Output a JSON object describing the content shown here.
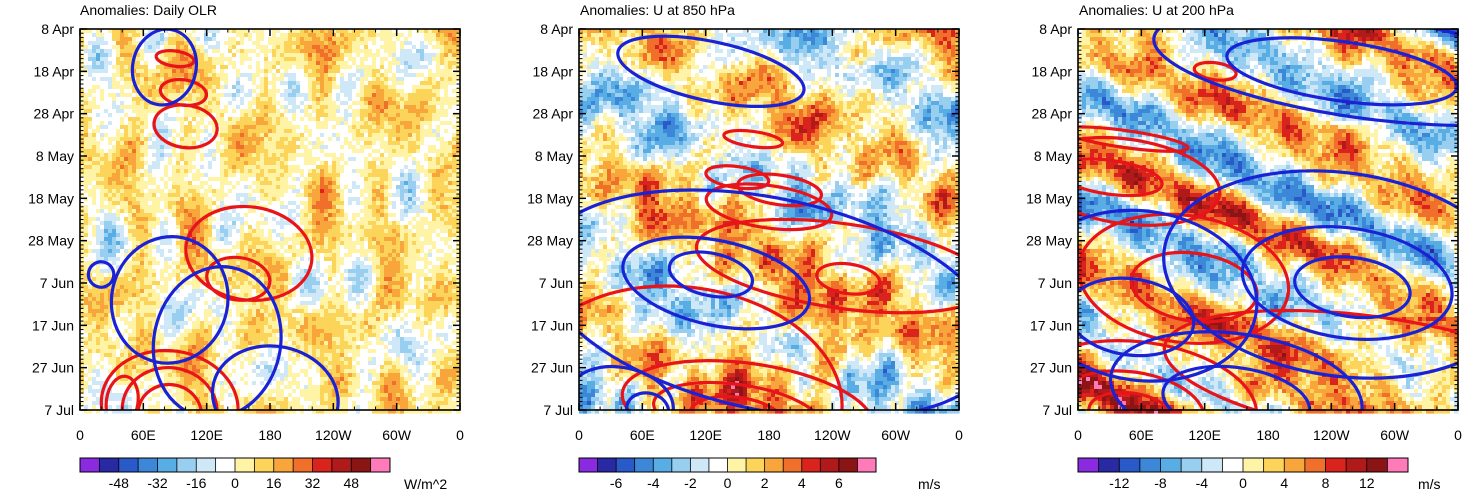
{
  "chart_data": [
    {
      "type": "heatmap",
      "title": "Anomalies: Daily OLR",
      "variable": "OLR anomaly",
      "x_tick_labels": [
        "0",
        "60E",
        "120E",
        "180",
        "120W",
        "60W",
        "0"
      ],
      "x_range_deg_east": [
        0,
        360
      ],
      "y_tick_labels": [
        "8 Apr",
        "18 Apr",
        "28 Apr",
        "8 May",
        "18 May",
        "28 May",
        "7 Jun",
        "17 Jun",
        "27 Jun",
        "7 Jul"
      ],
      "colorbar": {
        "labels": [
          "-48",
          "-32",
          "-16",
          "0",
          "16",
          "32",
          "48"
        ],
        "units": "W/m^2",
        "range": [
          -64,
          64
        ]
      },
      "contours": {
        "red": [
          {
            "lon": 90,
            "date_index": 0.7,
            "w": 18,
            "h": 0.18
          },
          {
            "lon": 98,
            "date_index": 1.5,
            "w": 22,
            "h": 0.3
          },
          {
            "lon": 100,
            "date_index": 2.3,
            "w": 30,
            "h": 0.5
          },
          {
            "lon": 160,
            "date_index": 5.3,
            "w": 60,
            "h": 1.1
          },
          {
            "lon": 150,
            "date_index": 5.9,
            "w": 30,
            "h": 0.5
          },
          {
            "lon": 40,
            "date_index": 8.8,
            "w": 15,
            "h": 0.6
          },
          {
            "lon": 85,
            "date_index": 8.9,
            "w": 65,
            "h": 1.3
          },
          {
            "lon": 85,
            "date_index": 9.0,
            "w": 45,
            "h": 1.0
          },
          {
            "lon": 85,
            "date_index": 9.1,
            "w": 30,
            "h": 0.7
          }
        ],
        "blue": [
          {
            "lon": 80,
            "date_index": 0.9,
            "w": 30,
            "h": 0.9
          },
          {
            "lon": 20,
            "date_index": 5.8,
            "w": 12,
            "h": 0.3
          },
          {
            "lon": 85,
            "date_index": 6.4,
            "w": 55,
            "h": 1.5
          },
          {
            "lon": 130,
            "date_index": 7.4,
            "w": 60,
            "h": 1.8
          },
          {
            "lon": 185,
            "date_index": 8.7,
            "w": 60,
            "h": 1.2
          }
        ]
      }
    },
    {
      "type": "heatmap",
      "title": "Anomalies: U at 850 hPa",
      "variable": "zonal wind anomaly at 850 hPa",
      "x_tick_labels": [
        "0",
        "60E",
        "120E",
        "180",
        "120W",
        "60W",
        "0"
      ],
      "x_range_deg_east": [
        0,
        360
      ],
      "y_tick_labels": [
        "8 Apr",
        "18 Apr",
        "28 Apr",
        "8 May",
        "18 May",
        "28 May",
        "7 Jun",
        "17 Jun",
        "27 Jun",
        "7 Jul"
      ],
      "colorbar": {
        "labels": [
          "-6",
          "-4",
          "-2",
          "0",
          "2",
          "4",
          "6"
        ],
        "units": "m/s",
        "range": [
          -8,
          8
        ]
      },
      "contours": {
        "red": [
          {
            "lon": 165,
            "date_index": 2.6,
            "w": 28,
            "h": 0.18
          },
          {
            "lon": 150,
            "date_index": 3.5,
            "w": 30,
            "h": 0.25
          },
          {
            "lon": 190,
            "date_index": 3.8,
            "w": 40,
            "h": 0.35
          },
          {
            "lon": 180,
            "date_index": 4.2,
            "w": 60,
            "h": 0.5
          },
          {
            "lon": 250,
            "date_index": 5.6,
            "w": 140,
            "h": 1.0
          },
          {
            "lon": 255,
            "date_index": 5.9,
            "w": 30,
            "h": 0.35
          },
          {
            "lon": 100,
            "date_index": 8.6,
            "w": 150,
            "h": 2.5
          },
          {
            "lon": 160,
            "date_index": 9.0,
            "w": 120,
            "h": 1.1
          },
          {
            "lon": 150,
            "date_index": 9.1,
            "w": 80,
            "h": 0.7
          },
          {
            "lon": 150,
            "date_index": 9.2,
            "w": 45,
            "h": 0.5
          }
        ],
        "blue": [
          {
            "lon": 125,
            "date_index": 1.0,
            "w": 90,
            "h": 0.7
          },
          {
            "lon": 180,
            "date_index": 6.5,
            "w": 220,
            "h": 2.5
          },
          {
            "lon": 130,
            "date_index": 6.0,
            "w": 90,
            "h": 1.0
          },
          {
            "lon": 125,
            "date_index": 5.8,
            "w": 40,
            "h": 0.5
          },
          {
            "lon": 40,
            "date_index": 8.8,
            "w": 50,
            "h": 0.8
          },
          {
            "lon": 65,
            "date_index": 9.0,
            "w": 20,
            "h": 0.4
          }
        ]
      }
    },
    {
      "type": "heatmap",
      "title": "Anomalies: U at 200 hPa",
      "variable": "zonal wind anomaly at 200 hPa",
      "x_tick_labels": [
        "0",
        "60E",
        "120E",
        "180",
        "120W",
        "60W",
        "0"
      ],
      "x_range_deg_east": [
        0,
        360
      ],
      "y_tick_labels": [
        "8 Apr",
        "18 Apr",
        "28 Apr",
        "8 May",
        "18 May",
        "28 May",
        "7 Jun",
        "17 Jun",
        "27 Jun",
        "7 Jul"
      ],
      "colorbar": {
        "labels": [
          "-12",
          "-8",
          "-4",
          "0",
          "4",
          "8",
          "12"
        ],
        "units": "m/s",
        "range": [
          -16,
          16
        ]
      },
      "contours": {
        "red": [
          {
            "lon": 45,
            "date_index": 2.6,
            "w": 60,
            "h": 0.2
          },
          {
            "lon": 130,
            "date_index": 1.0,
            "w": 20,
            "h": 0.2
          },
          {
            "lon": 45,
            "date_index": 3.6,
            "w": 90,
            "h": 1.0
          },
          {
            "lon": 30,
            "date_index": 3.5,
            "w": 50,
            "h": 0.4
          },
          {
            "lon": 100,
            "date_index": 5.9,
            "w": 100,
            "h": 1.5
          },
          {
            "lon": 110,
            "date_index": 6.1,
            "w": 60,
            "h": 0.8
          },
          {
            "lon": 280,
            "date_index": 8.2,
            "w": 200,
            "h": 1.4
          },
          {
            "lon": 60,
            "date_index": 8.8,
            "w": 110,
            "h": 1.4
          },
          {
            "lon": 50,
            "date_index": 9.0,
            "w": 70,
            "h": 0.9
          },
          {
            "lon": 50,
            "date_index": 9.1,
            "w": 40,
            "h": 0.5
          }
        ],
        "blue": [
          {
            "lon": 270,
            "date_index": 0.9,
            "w": 200,
            "h": 1.2
          },
          {
            "lon": 250,
            "date_index": 1.0,
            "w": 110,
            "h": 0.7
          },
          {
            "lon": 250,
            "date_index": 5.8,
            "w": 170,
            "h": 2.4
          },
          {
            "lon": 255,
            "date_index": 6.0,
            "w": 100,
            "h": 1.3
          },
          {
            "lon": 260,
            "date_index": 6.1,
            "w": 55,
            "h": 0.7
          },
          {
            "lon": 60,
            "date_index": 6.3,
            "w": 110,
            "h": 2.0
          },
          {
            "lon": 50,
            "date_index": 6.8,
            "w": 60,
            "h": 0.9
          },
          {
            "lon": 150,
            "date_index": 8.6,
            "w": 120,
            "h": 1.4
          },
          {
            "lon": 150,
            "date_index": 8.8,
            "w": 70,
            "h": 0.8
          }
        ]
      }
    }
  ],
  "palette": [
    "#8a2be2",
    "#2929a3",
    "#2a59c9",
    "#3d87d9",
    "#58aee4",
    "#98cef0",
    "#cfe8f8",
    "#ffffff",
    "#fff3a6",
    "#fcd45a",
    "#f8a53c",
    "#f06f2a",
    "#d9231c",
    "#b01a1a",
    "#8b1414",
    "#ff7ab8"
  ],
  "contour_colors": {
    "positive": "#e8141a",
    "negative": "#1a22d6"
  }
}
